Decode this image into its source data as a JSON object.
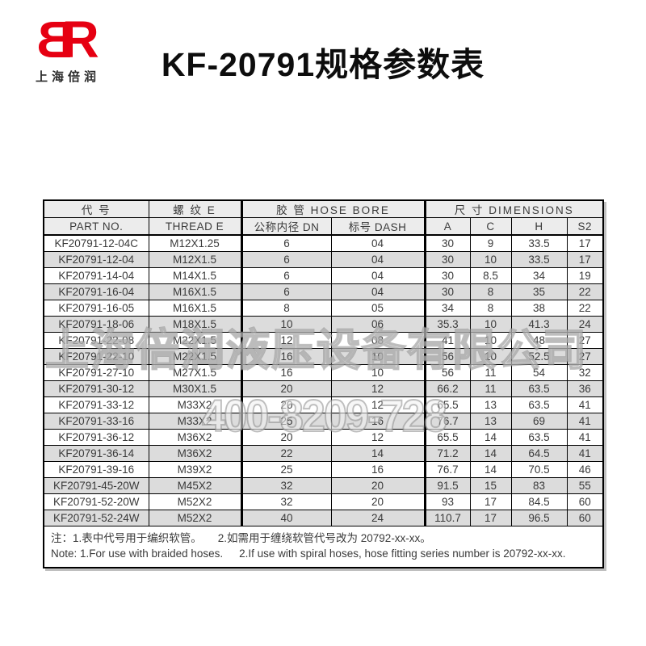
{
  "logo": {
    "letter_b": "B",
    "letter_r": "R",
    "subtitle": "上海倍润"
  },
  "title": "KF-20791规格参数表",
  "colors": {
    "logo_red": "#e60012",
    "header_bg": "#ececec",
    "row_alt_bg": "#dcdcdc",
    "border": "#000000",
    "watermark_gray": "#8c8c8c"
  },
  "watermark": {
    "company": "上海倍润液压设备有限公司",
    "phone": "400-8209-728"
  },
  "table": {
    "header": {
      "part_cn": "代 号",
      "part_en": "PART NO.",
      "thread_cn": "螺 纹 E",
      "thread_en": "THREAD E",
      "hose_group": "胶 管  HOSE BORE",
      "dn": "公称内径 DN",
      "dash": "标号 DASH",
      "dim_group": "尺 寸    DIMENSIONS",
      "a": "A",
      "c": "C",
      "h": "H",
      "s2": "S2"
    },
    "rows": [
      [
        "KF20791-12-04C",
        "M12X1.25",
        "6",
        "04",
        "30",
        "9",
        "33.5",
        "17"
      ],
      [
        "KF20791-12-04",
        "M12X1.5",
        "6",
        "04",
        "30",
        "10",
        "33.5",
        "17"
      ],
      [
        "KF20791-14-04",
        "M14X1.5",
        "6",
        "04",
        "30",
        "8.5",
        "34",
        "19"
      ],
      [
        "KF20791-16-04",
        "M16X1.5",
        "6",
        "04",
        "30",
        "8",
        "35",
        "22"
      ],
      [
        "KF20791-16-05",
        "M16X1.5",
        "8",
        "05",
        "34",
        "8",
        "38",
        "22"
      ],
      [
        "KF20791-18-06",
        "M18X1.5",
        "10",
        "06",
        "35.3",
        "10",
        "41.3",
        "24"
      ],
      [
        "KF20791-22-08",
        "M22X1.5",
        "12",
        "08",
        "41",
        "10",
        "48",
        "27"
      ],
      [
        "KF20791-22-10",
        "M22X1.5",
        "16",
        "10",
        "56",
        "10",
        "52.5",
        "27"
      ],
      [
        "KF20791-27-10",
        "M27X1.5",
        "16",
        "10",
        "56",
        "11",
        "54",
        "32"
      ],
      [
        "KF20791-30-12",
        "M30X1.5",
        "20",
        "12",
        "66.2",
        "11",
        "63.5",
        "36"
      ],
      [
        "KF20791-33-12",
        "M33X2",
        "20",
        "12",
        "65.5",
        "13",
        "63.5",
        "41"
      ],
      [
        "KF20791-33-16",
        "M33X2",
        "25",
        "16",
        "76.7",
        "13",
        "69",
        "41"
      ],
      [
        "KF20791-36-12",
        "M36X2",
        "20",
        "12",
        "65.5",
        "14",
        "63.5",
        "41"
      ],
      [
        "KF20791-36-14",
        "M36X2",
        "22",
        "14",
        "71.2",
        "14",
        "64.5",
        "41"
      ],
      [
        "KF20791-39-16",
        "M39X2",
        "25",
        "16",
        "76.7",
        "14",
        "70.5",
        "46"
      ],
      [
        "KF20791-45-20W",
        "M45X2",
        "32",
        "20",
        "91.5",
        "15",
        "83",
        "55"
      ],
      [
        "KF20791-52-20W",
        "M52X2",
        "32",
        "20",
        "93",
        "17",
        "84.5",
        "60"
      ],
      [
        "KF20791-52-24W",
        "M52X2",
        "40",
        "24",
        "110.7",
        "17",
        "96.5",
        "60"
      ]
    ],
    "notes": {
      "cn1": "注：1.表中代号用于编织软管。",
      "cn2": "2.如需用于缠绕软管代号改为 20792-xx-xx。",
      "en1": "Note: 1.For use with braided hoses.",
      "en2": "2.If use with spiral hoses, hose fitting series number is 20792-xx-xx."
    }
  }
}
